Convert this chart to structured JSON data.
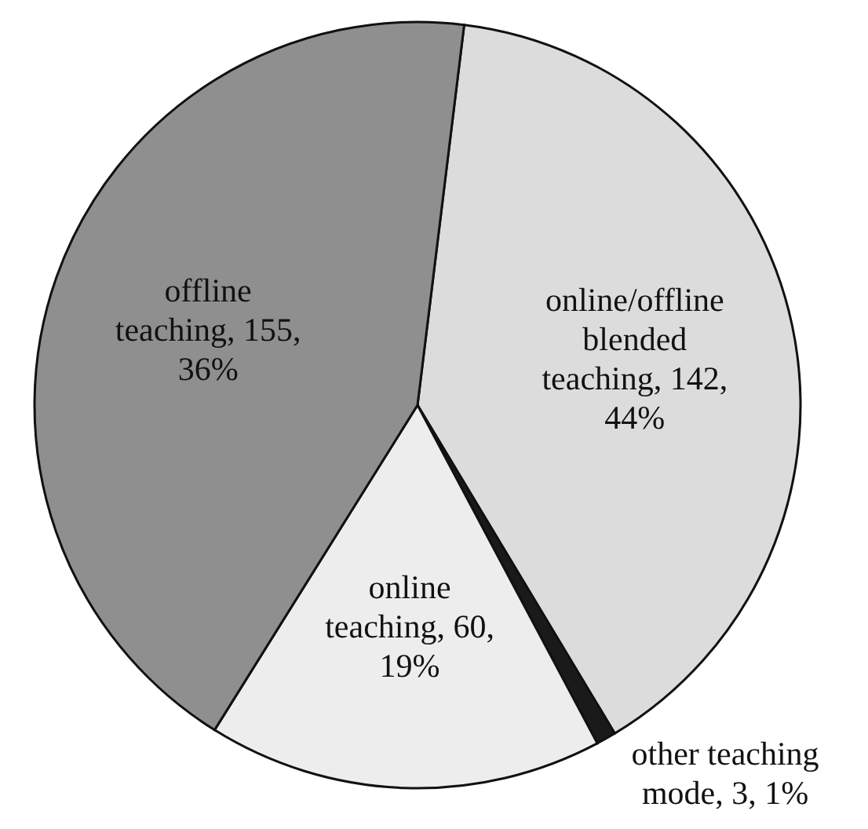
{
  "chart_data": {
    "type": "pie",
    "categories": [
      "online/offline blended teaching",
      "other teaching mode",
      "online teaching",
      "offline teaching"
    ],
    "values": [
      142,
      3,
      60,
      155
    ],
    "value_labels": [
      "142, 44%",
      "3, 1%",
      "60, 19%",
      "155, 36%"
    ],
    "colors": [
      "#dcdcdc",
      "#1a1a1a",
      "#ededed",
      "#8f8f8f"
    ],
    "legend": false
  }
}
